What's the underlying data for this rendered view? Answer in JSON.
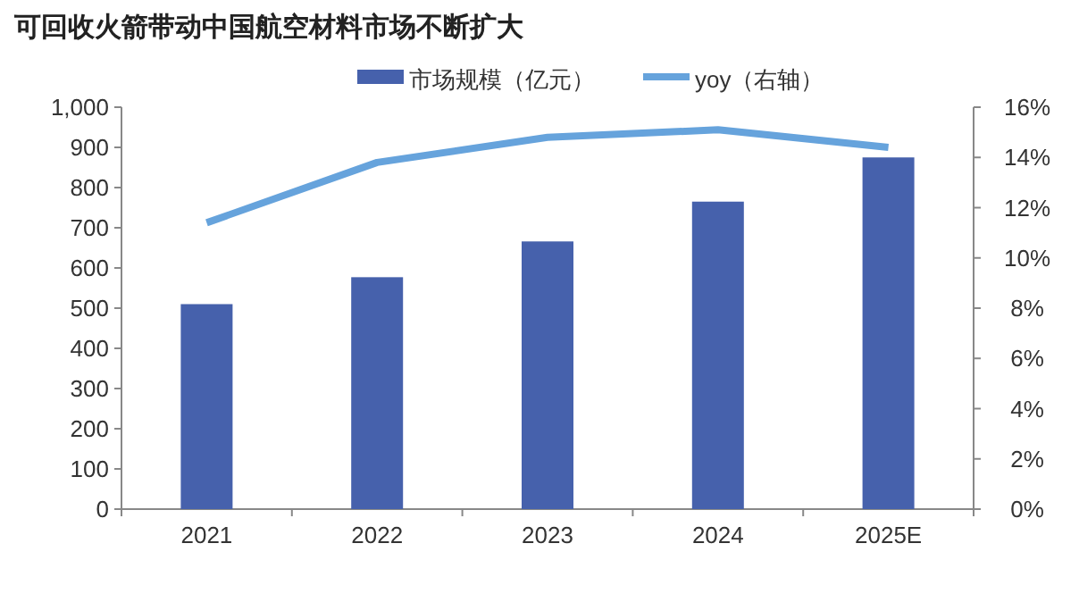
{
  "chart_data": {
    "type": "bar",
    "title": "可回收火箭带动中国航空材料市场不断扩大",
    "categories": [
      "2021",
      "2022",
      "2023",
      "2024",
      "2025E"
    ],
    "series": [
      {
        "name": "市场规模（亿元）",
        "color": "#4661ac",
        "values": [
          510,
          577,
          666,
          765,
          875
        ]
      },
      {
        "name": "yoy（右轴）",
        "type": "line",
        "axis": "y2",
        "color": "#66a3dc",
        "values": [
          11.4,
          13.8,
          14.8,
          15.1,
          14.4
        ]
      }
    ],
    "ylim": [
      0,
      1000
    ],
    "yticks": [
      0,
      {
        "value": 100,
        "label": "100"
      },
      {
        "value": 200,
        "label": "200"
      },
      {
        "value": 300,
        "label": "300"
      },
      {
        "value": 400,
        "label": "400"
      },
      {
        "value": 500,
        "label": "500"
      },
      {
        "value": 600,
        "label": "600"
      },
      {
        "value": 700,
        "label": "700"
      },
      {
        "value": 800,
        "label": "800"
      },
      {
        "value": 900,
        "label": "900"
      },
      {
        "value": 1000,
        "label": "1,000"
      }
    ],
    "y2lim": [
      0,
      16
    ],
    "y2ticks": [
      {
        "value": 0,
        "label": "0%"
      },
      {
        "value": 2,
        "label": "2%"
      },
      {
        "value": 4,
        "label": "4%"
      },
      {
        "value": 6,
        "label": "6%"
      },
      {
        "value": 8,
        "label": "8%"
      },
      {
        "value": 10,
        "label": "10%"
      },
      {
        "value": 12,
        "label": "12%"
      },
      {
        "value": 14,
        "label": "14%"
      },
      {
        "value": 16,
        "label": "16%"
      }
    ],
    "grid": false,
    "legend": "top",
    "marker": "none",
    "line_style": "solid"
  }
}
